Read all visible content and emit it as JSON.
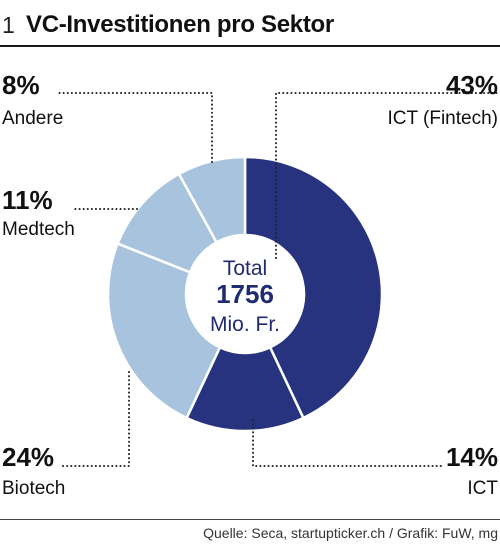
{
  "header": {
    "number": "1",
    "title": "VC-Investitionen pro Sektor"
  },
  "footer": {
    "source": "Quelle: Seca, startupticker.ch / Grafik: FuW, mg"
  },
  "colors": {
    "dark": "#27337f",
    "light": "#a8c3de",
    "separator": "#ffffff",
    "center_text": "#1f2c6e"
  },
  "chart_data": {
    "type": "pie",
    "donut": true,
    "categories": [
      "ICT (Fintech)",
      "ICT",
      "Biotech",
      "Medtech",
      "Andere"
    ],
    "values": [
      43,
      14,
      24,
      11,
      8
    ],
    "value_labels": [
      "43%",
      "14%",
      "24%",
      "11%",
      "8%"
    ],
    "slice_colors": [
      "dark",
      "dark",
      "light",
      "light",
      "light"
    ],
    "center": {
      "line1": "Total",
      "line2": "1756",
      "line3": "Mio. Fr."
    }
  }
}
